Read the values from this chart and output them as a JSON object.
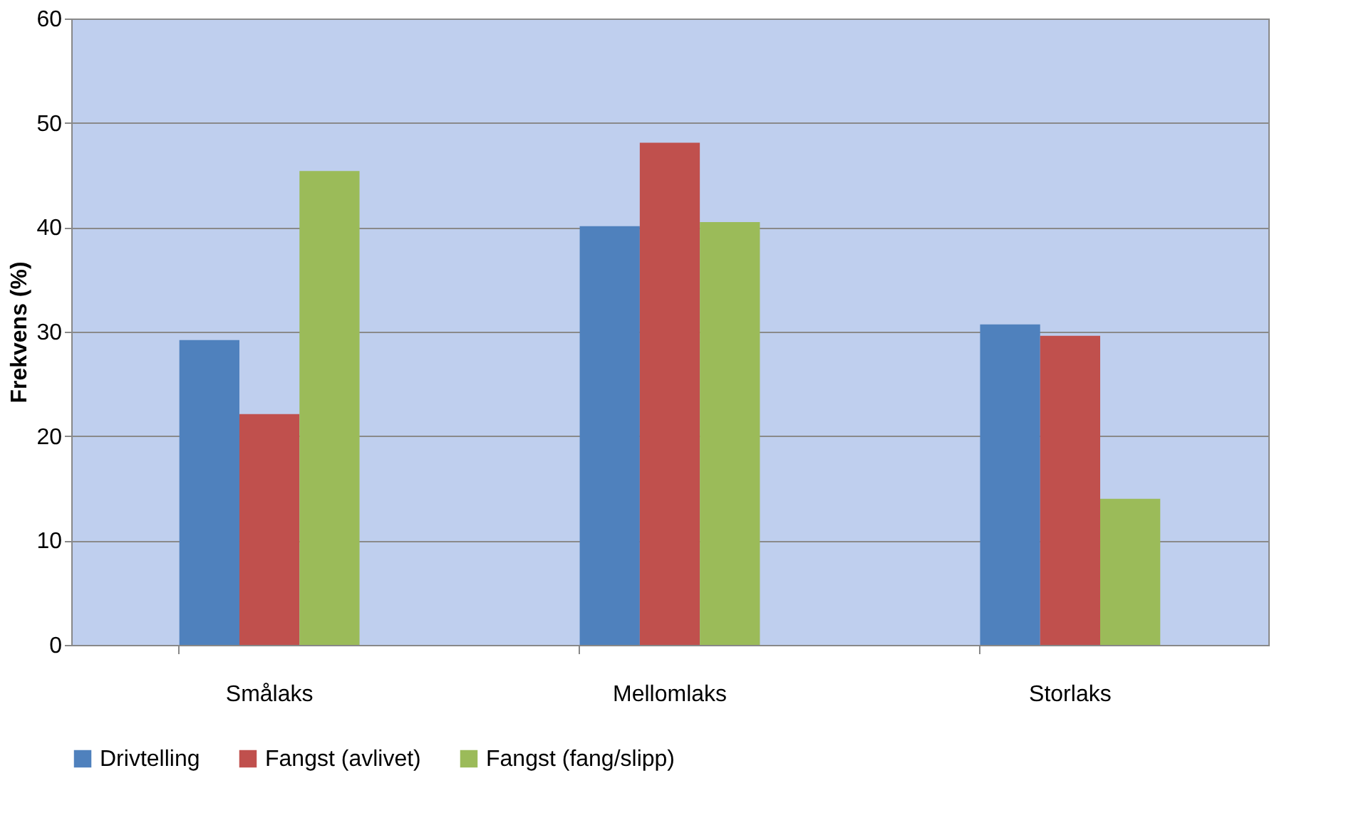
{
  "chart_data": {
    "type": "bar",
    "ylabel": "Frekvens (%)",
    "categories": [
      "Smålaks",
      "Mellomlaks",
      "Storlaks"
    ],
    "series": [
      {
        "name": "Drivtelling",
        "color": "#4f81bd",
        "values": [
          29.2,
          40.1,
          30.7
        ]
      },
      {
        "name": "Fangst (avlivet)",
        "color": "#c0504d",
        "values": [
          22.1,
          48.1,
          29.6
        ]
      },
      {
        "name": "Fangst (fang/slipp)",
        "color": "#9bbb59",
        "values": [
          45.4,
          40.5,
          14.0
        ]
      }
    ],
    "ylim": [
      0,
      60
    ],
    "yticks": [
      0,
      10,
      20,
      30,
      40,
      50,
      60
    ],
    "grid": "y",
    "legend": "bottom"
  }
}
